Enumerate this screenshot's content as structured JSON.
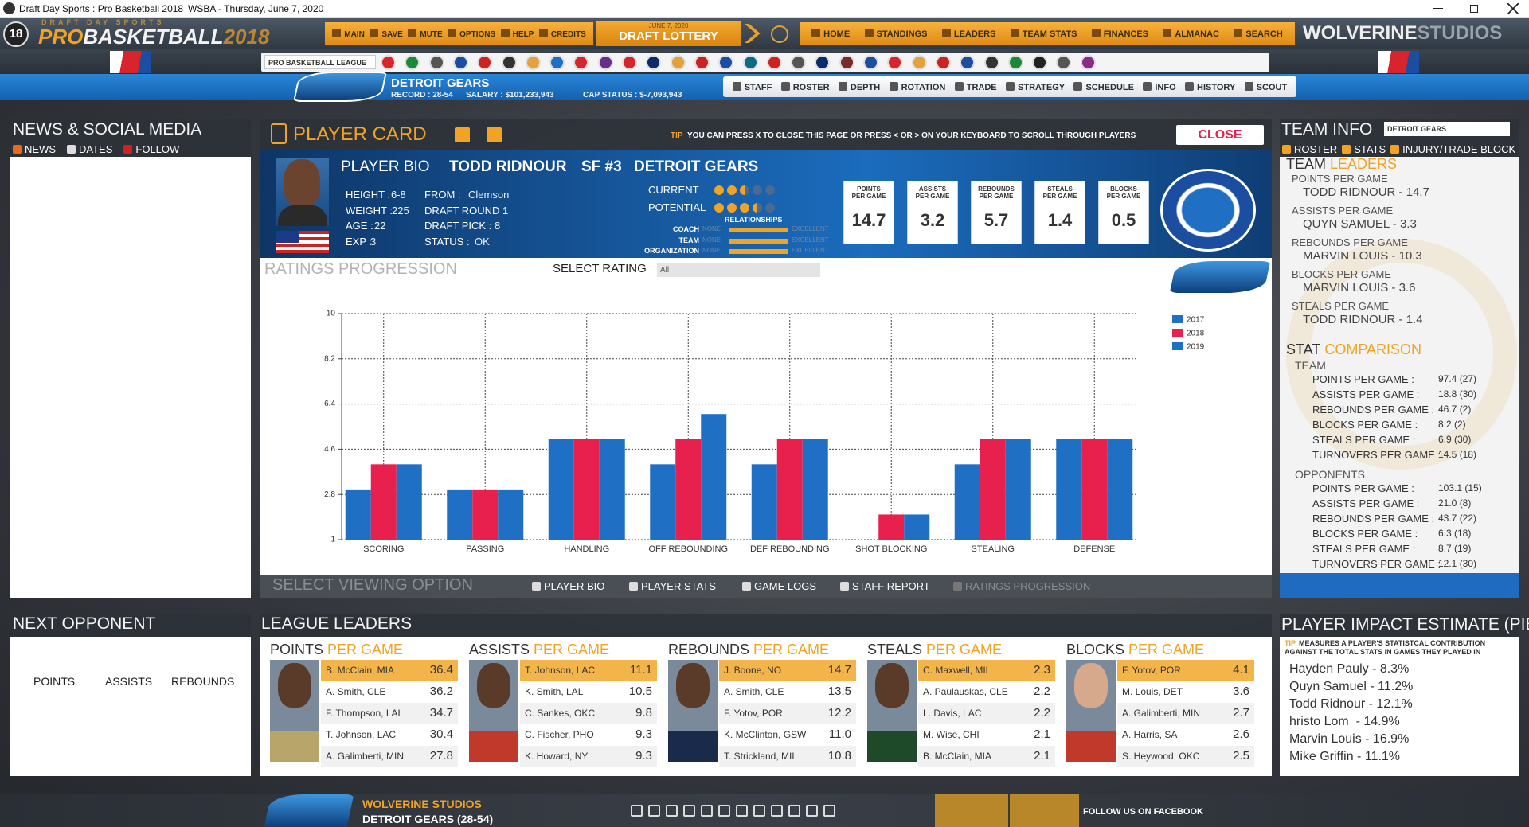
{
  "window": {
    "title": "Draft Day Sports : Pro Basketball 2018",
    "status": "WSBA - Thursday, June 7, 2020"
  },
  "app": {
    "badge": "18",
    "brand": "DRAFT DAY SPORTS",
    "logo_pro": "PRO",
    "logo_name": "BASKETBALL",
    "logo_year": "2018",
    "menu": [
      "MAIN",
      "SAVE",
      "MUTE",
      "OPTIONS",
      "HELP",
      "CREDITS"
    ],
    "date": "JUNE 7, 2020",
    "event": "DRAFT LOTTERY",
    "nav": [
      "HOME",
      "STANDINGS",
      "LEADERS",
      "TEAM STATS",
      "FINANCES",
      "ALMANAC",
      "SEARCH"
    ],
    "studio_name": "WOLVERINE",
    "studio_suffix": "STUDIOS",
    "league_select": "PRO BASKETBALL LEAGUE"
  },
  "team": {
    "name": "DETROIT GEARS",
    "record": "RECORD : 28-54",
    "salary": "SALARY : $101,233,943",
    "cap_status": "CAP STATUS : $-7,093,943",
    "nav": [
      "STAFF",
      "ROSTER",
      "DEPTH",
      "ROTATION",
      "TRADE",
      "STRATEGY",
      "SCHEDULE",
      "INFO",
      "HISTORY",
      "SCOUT"
    ]
  },
  "news": {
    "title": "NEWS & SOCIAL MEDIA",
    "tabs": [
      "NEWS",
      "DATES",
      "FOLLOW"
    ]
  },
  "player_card": {
    "title": "PLAYER CARD",
    "tip_label": "TIP",
    "tip": "YOU CAN PRESS X TO CLOSE THIS PAGE OR PRESS < OR > ON YOUR KEYBOARD TO SCROLL THROUGH PLAYERS",
    "close": "CLOSE",
    "bio_title": "PLAYER BIO",
    "player": "TODD RIDNOUR",
    "position": "SF #3",
    "team": "DETROIT GEARS",
    "fields_left": [
      {
        "label": "HEIGHT :",
        "value": "6-8"
      },
      {
        "label": "WEIGHT :",
        "value": "225"
      },
      {
        "label": "AGE :",
        "value": "22"
      },
      {
        "label": "EXP :",
        "value": "3"
      }
    ],
    "fields_right": [
      {
        "label": "FROM :",
        "value": "Clemson"
      },
      {
        "label": "DRAFT ROUND :",
        "value": "1"
      },
      {
        "label": "DRAFT PICK :",
        "value": "8"
      },
      {
        "label": "STATUS :",
        "value": "OK"
      }
    ],
    "current": "CURRENT",
    "potential": "POTENTIAL",
    "relationships_title": "RELATIONSHIPS",
    "relationships": [
      {
        "label": "COACH",
        "min": "NONE",
        "max": "EXCELLENT"
      },
      {
        "label": "TEAM",
        "min": "NONE",
        "max": "EXCELLENT"
      },
      {
        "label": "ORGANIZATION",
        "min": "NONE",
        "max": "EXCELLENT"
      }
    ],
    "stats": [
      {
        "label": [
          "POINTS",
          "PER GAME"
        ],
        "value": "14.7"
      },
      {
        "label": [
          "ASSISTS",
          "PER GAME"
        ],
        "value": "3.2"
      },
      {
        "label": [
          "REBOUNDS",
          "PER GAME"
        ],
        "value": "5.7"
      },
      {
        "label": [
          "STEALS",
          "PER GAME"
        ],
        "value": "1.4"
      },
      {
        "label": [
          "BLOCKS",
          "PER GAME"
        ],
        "value": "0.5"
      }
    ],
    "select_rating": "SELECT RATING",
    "rating_option": "All",
    "viewing_title": "SELECT VIEWING OPTION",
    "viewing_options": [
      "PLAYER BIO",
      "PLAYER STATS",
      "GAME LOGS",
      "STAFF REPORT",
      "RATINGS PROGRESSION"
    ]
  },
  "chart_data": {
    "type": "bar",
    "title": "RATINGS PROGRESSION",
    "categories": [
      "SCORING",
      "PASSING",
      "HANDLING",
      "OFF REBOUNDING",
      "DEF REBOUNDING",
      "SHOT BLOCKING",
      "STEALING",
      "DEFENSE"
    ],
    "series": [
      {
        "name": "2017",
        "color": "#1f6fc5",
        "values": [
          3,
          3,
          5,
          4,
          4,
          1,
          4,
          5
        ]
      },
      {
        "name": "2018",
        "color": "#e8204e",
        "values": [
          4,
          3,
          5,
          5,
          5,
          2,
          5,
          5
        ]
      },
      {
        "name": "2019",
        "color": "#1f6fc5",
        "values": [
          4,
          3,
          5,
          6,
          5,
          2,
          5,
          5
        ]
      }
    ],
    "ylim": [
      1,
      10
    ],
    "yticks": [
      1,
      2.8,
      4.6,
      6.4,
      8.2,
      10
    ],
    "grid": true,
    "legend": "upper right"
  },
  "team_info": {
    "title": "TEAM INFO",
    "select": "DETROIT GEARS",
    "tabs": [
      "ROSTER",
      "STATS",
      "INJURY/TRADE BLOCK"
    ],
    "leaders_title_1": "TEAM",
    "leaders_title_2": "LEADERS",
    "leaders": [
      {
        "label": "POINTS PER GAME",
        "value": "TODD RIDNOUR - 14.7"
      },
      {
        "label": "ASSISTS PER GAME",
        "value": "QUYN SAMUEL - 3.3"
      },
      {
        "label": "REBOUNDS PER GAME",
        "value": "MARVIN LOUIS - 10.3"
      },
      {
        "label": "BLOCKS PER GAME",
        "value": "MARVIN LOUIS - 3.6"
      },
      {
        "label": "STEALS PER GAME",
        "value": "TODD RIDNOUR - 1.4"
      }
    ],
    "comparison_title_1": "STAT",
    "comparison_title_2": "COMPARISON",
    "team_label": "TEAM",
    "team_stats": [
      {
        "label": "POINTS PER GAME :",
        "value": "97.4 (27)"
      },
      {
        "label": "ASSISTS PER GAME :",
        "value": "18.8 (30)"
      },
      {
        "label": "REBOUNDS PER GAME :",
        "value": "46.7 (2)"
      },
      {
        "label": "BLOCKS PER GAME :",
        "value": "8.2 (2)"
      },
      {
        "label": "STEALS PER GAME :",
        "value": "6.9 (30)"
      },
      {
        "label": "TURNOVERS PER GAME :",
        "value": "14.5 (18)"
      }
    ],
    "opponents_label": "OPPONENTS",
    "opponent_stats": [
      {
        "label": "POINTS PER GAME :",
        "value": "103.1 (15)"
      },
      {
        "label": "ASSISTS PER GAME :",
        "value": "21.0 (8)"
      },
      {
        "label": "REBOUNDS PER GAME :",
        "value": "43.7 (22)"
      },
      {
        "label": "BLOCKS PER GAME :",
        "value": "6.3 (18)"
      },
      {
        "label": "STEALS PER GAME :",
        "value": "8.7 (19)"
      },
      {
        "label": "TURNOVERS PER GAME :",
        "value": "12.1 (30)"
      }
    ]
  },
  "next_opponent": {
    "title": "NEXT OPPONENT",
    "columns": [
      "POINTS",
      "ASSISTS",
      "REBOUNDS"
    ]
  },
  "league_leaders": {
    "title": "LEAGUE LEADERS",
    "categories": [
      {
        "title_1": "POINTS",
        "title_2": "PER GAME",
        "rows": [
          {
            "name": "B. McClain, MIA",
            "value": "36.4"
          },
          {
            "name": "A. Smith, CLE",
            "value": "36.2"
          },
          {
            "name": "F. Thompson, LAL",
            "value": "34.7"
          },
          {
            "name": "T. Johnson, LAC",
            "value": "30.4"
          },
          {
            "name": "A. Galimberti, MIN",
            "value": "27.8"
          }
        ]
      },
      {
        "title_1": "ASSISTS",
        "title_2": "PER GAME",
        "rows": [
          {
            "name": "T. Johnson, LAC",
            "value": "11.1"
          },
          {
            "name": "K. Smith, LAL",
            "value": "10.5"
          },
          {
            "name": "C. Sankes, OKC",
            "value": "9.8"
          },
          {
            "name": "C. Fischer, PHO",
            "value": "9.3"
          },
          {
            "name": "K. Howard, NY",
            "value": "9.3"
          }
        ]
      },
      {
        "title_1": "REBOUNDS",
        "title_2": "PER GAME",
        "rows": [
          {
            "name": "J. Boone, NO",
            "value": "14.7"
          },
          {
            "name": "A. Smith, CLE",
            "value": "13.5"
          },
          {
            "name": "F. Yotov, POR",
            "value": "12.2"
          },
          {
            "name": "K. McClinton, GSW",
            "value": "11.0"
          },
          {
            "name": "T. Strickland, MIL",
            "value": "10.8"
          }
        ]
      },
      {
        "title_1": "STEALS",
        "title_2": "PER GAME",
        "rows": [
          {
            "name": "C. Maxwell, MIL",
            "value": "2.3"
          },
          {
            "name": "A. Paulauskas, CLE",
            "value": "2.2"
          },
          {
            "name": "L. Davis, LAC",
            "value": "2.2"
          },
          {
            "name": "M. Wise, CHI",
            "value": "2.1"
          },
          {
            "name": "B. McClain, MIA",
            "value": "2.1"
          }
        ]
      },
      {
        "title_1": "BLOCKS",
        "title_2": "PER GAME",
        "rows": [
          {
            "name": "F. Yotov, POR",
            "value": "4.1"
          },
          {
            "name": "M. Louis, DET",
            "value": "3.6"
          },
          {
            "name": "A. Galimberti, MIN",
            "value": "2.7"
          },
          {
            "name": "A. Harris, SA",
            "value": "2.6"
          },
          {
            "name": "S. Heywood, OKC",
            "value": "2.5"
          }
        ]
      }
    ]
  },
  "pie": {
    "title": "PLAYER IMPACT ESTIMATE (PIE)",
    "tip_label": "TIP",
    "tip": "MEASURES A PLAYER'S STATISTCAL CONTRIBUTION AGAINST THE TOTAL STATS IN GAMES THEY PLAYED IN",
    "entries": [
      "Hayden Pauly - 8.3%",
      "Quyn Samuel - 11.2%",
      "Todd Ridnour - 12.1%",
      "hristo Lom  - 14.9%",
      "Marvin Louis - 16.9%",
      "Mike Griffin - 11.1%"
    ]
  },
  "footer": {
    "studio": "WOLVERINE STUDIOS",
    "team": "DETROIT GEARS (28-54)",
    "follow": "FOLLOW US ON FACEBOOK"
  }
}
